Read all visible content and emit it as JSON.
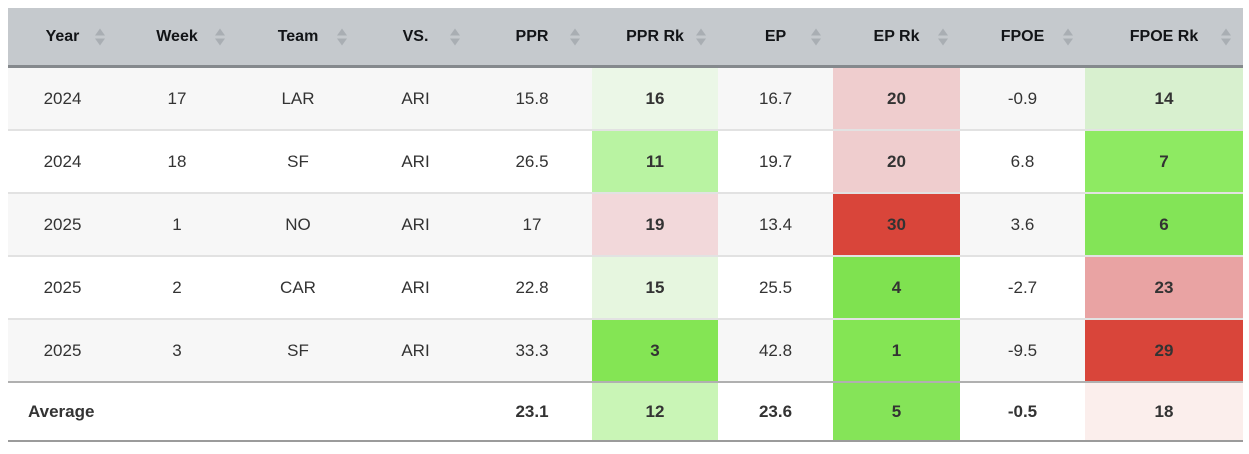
{
  "header": {
    "columns": [
      "Year",
      "Week",
      "Team",
      "VS.",
      "PPR",
      "PPR Rk",
      "EP",
      "EP Rk",
      "FPOE",
      "FPOE Rk"
    ]
  },
  "colors": {
    "header_bg": "#c5c9cd",
    "header_border": "#85898d",
    "sort_icon": "#a9aeb3",
    "row_stripe_bg": "#f7f7f7",
    "row_border": "#e2e2e2",
    "rank_good_strong": "#84e554",
    "rank_bad_strong": "#d9453a"
  },
  "rows": [
    {
      "year": "2024",
      "week": "17",
      "team": "LAR",
      "vs": "ARI",
      "ppr": "15.8",
      "ppr_rk": "16",
      "ppr_rk_bg": "#ebf7e7",
      "ep": "16.7",
      "ep_rk": "20",
      "ep_rk_bg": "#efcdce",
      "fpoe": "-0.9",
      "fpoe_rk": "14",
      "fpoe_rk_bg": "#d8f0cf"
    },
    {
      "year": "2024",
      "week": "18",
      "team": "SF",
      "vs": "ARI",
      "ppr": "26.5",
      "ppr_rk": "11",
      "ppr_rk_bg": "#b9f3a2",
      "ep": "19.7",
      "ep_rk": "20",
      "ep_rk_bg": "#efcdce",
      "fpoe": "6.8",
      "fpoe_rk": "7",
      "fpoe_rk_bg": "#8eea62"
    },
    {
      "year": "2025",
      "week": "1",
      "team": "NO",
      "vs": "ARI",
      "ppr": "17",
      "ppr_rk": "19",
      "ppr_rk_bg": "#f2d8da",
      "ep": "13.4",
      "ep_rk": "30",
      "ep_rk_bg": "#d9453a",
      "fpoe": "3.6",
      "fpoe_rk": "6",
      "fpoe_rk_bg": "#83e457"
    },
    {
      "year": "2025",
      "week": "2",
      "team": "CAR",
      "vs": "ARI",
      "ppr": "22.8",
      "ppr_rk": "15",
      "ppr_rk_bg": "#e6f6df",
      "ep": "25.5",
      "ep_rk": "4",
      "ep_rk_bg": "#7fe250",
      "fpoe": "-2.7",
      "fpoe_rk": "23",
      "fpoe_rk_bg": "#e9a3a3"
    },
    {
      "year": "2025",
      "week": "3",
      "team": "SF",
      "vs": "ARI",
      "ppr": "33.3",
      "ppr_rk": "3",
      "ppr_rk_bg": "#84e554",
      "ep": "42.8",
      "ep_rk": "1",
      "ep_rk_bg": "#84e554",
      "fpoe": "-9.5",
      "fpoe_rk": "29",
      "fpoe_rk_bg": "#d9453a"
    }
  ],
  "average": {
    "label": "Average",
    "ppr": "23.1",
    "ppr_rk": "12",
    "ppr_rk_bg": "#c9f5b6",
    "ep": "23.6",
    "ep_rk": "5",
    "ep_rk_bg": "#85e458",
    "fpoe": "-0.5",
    "fpoe_rk": "18",
    "fpoe_rk_bg": "#fbeeec"
  }
}
